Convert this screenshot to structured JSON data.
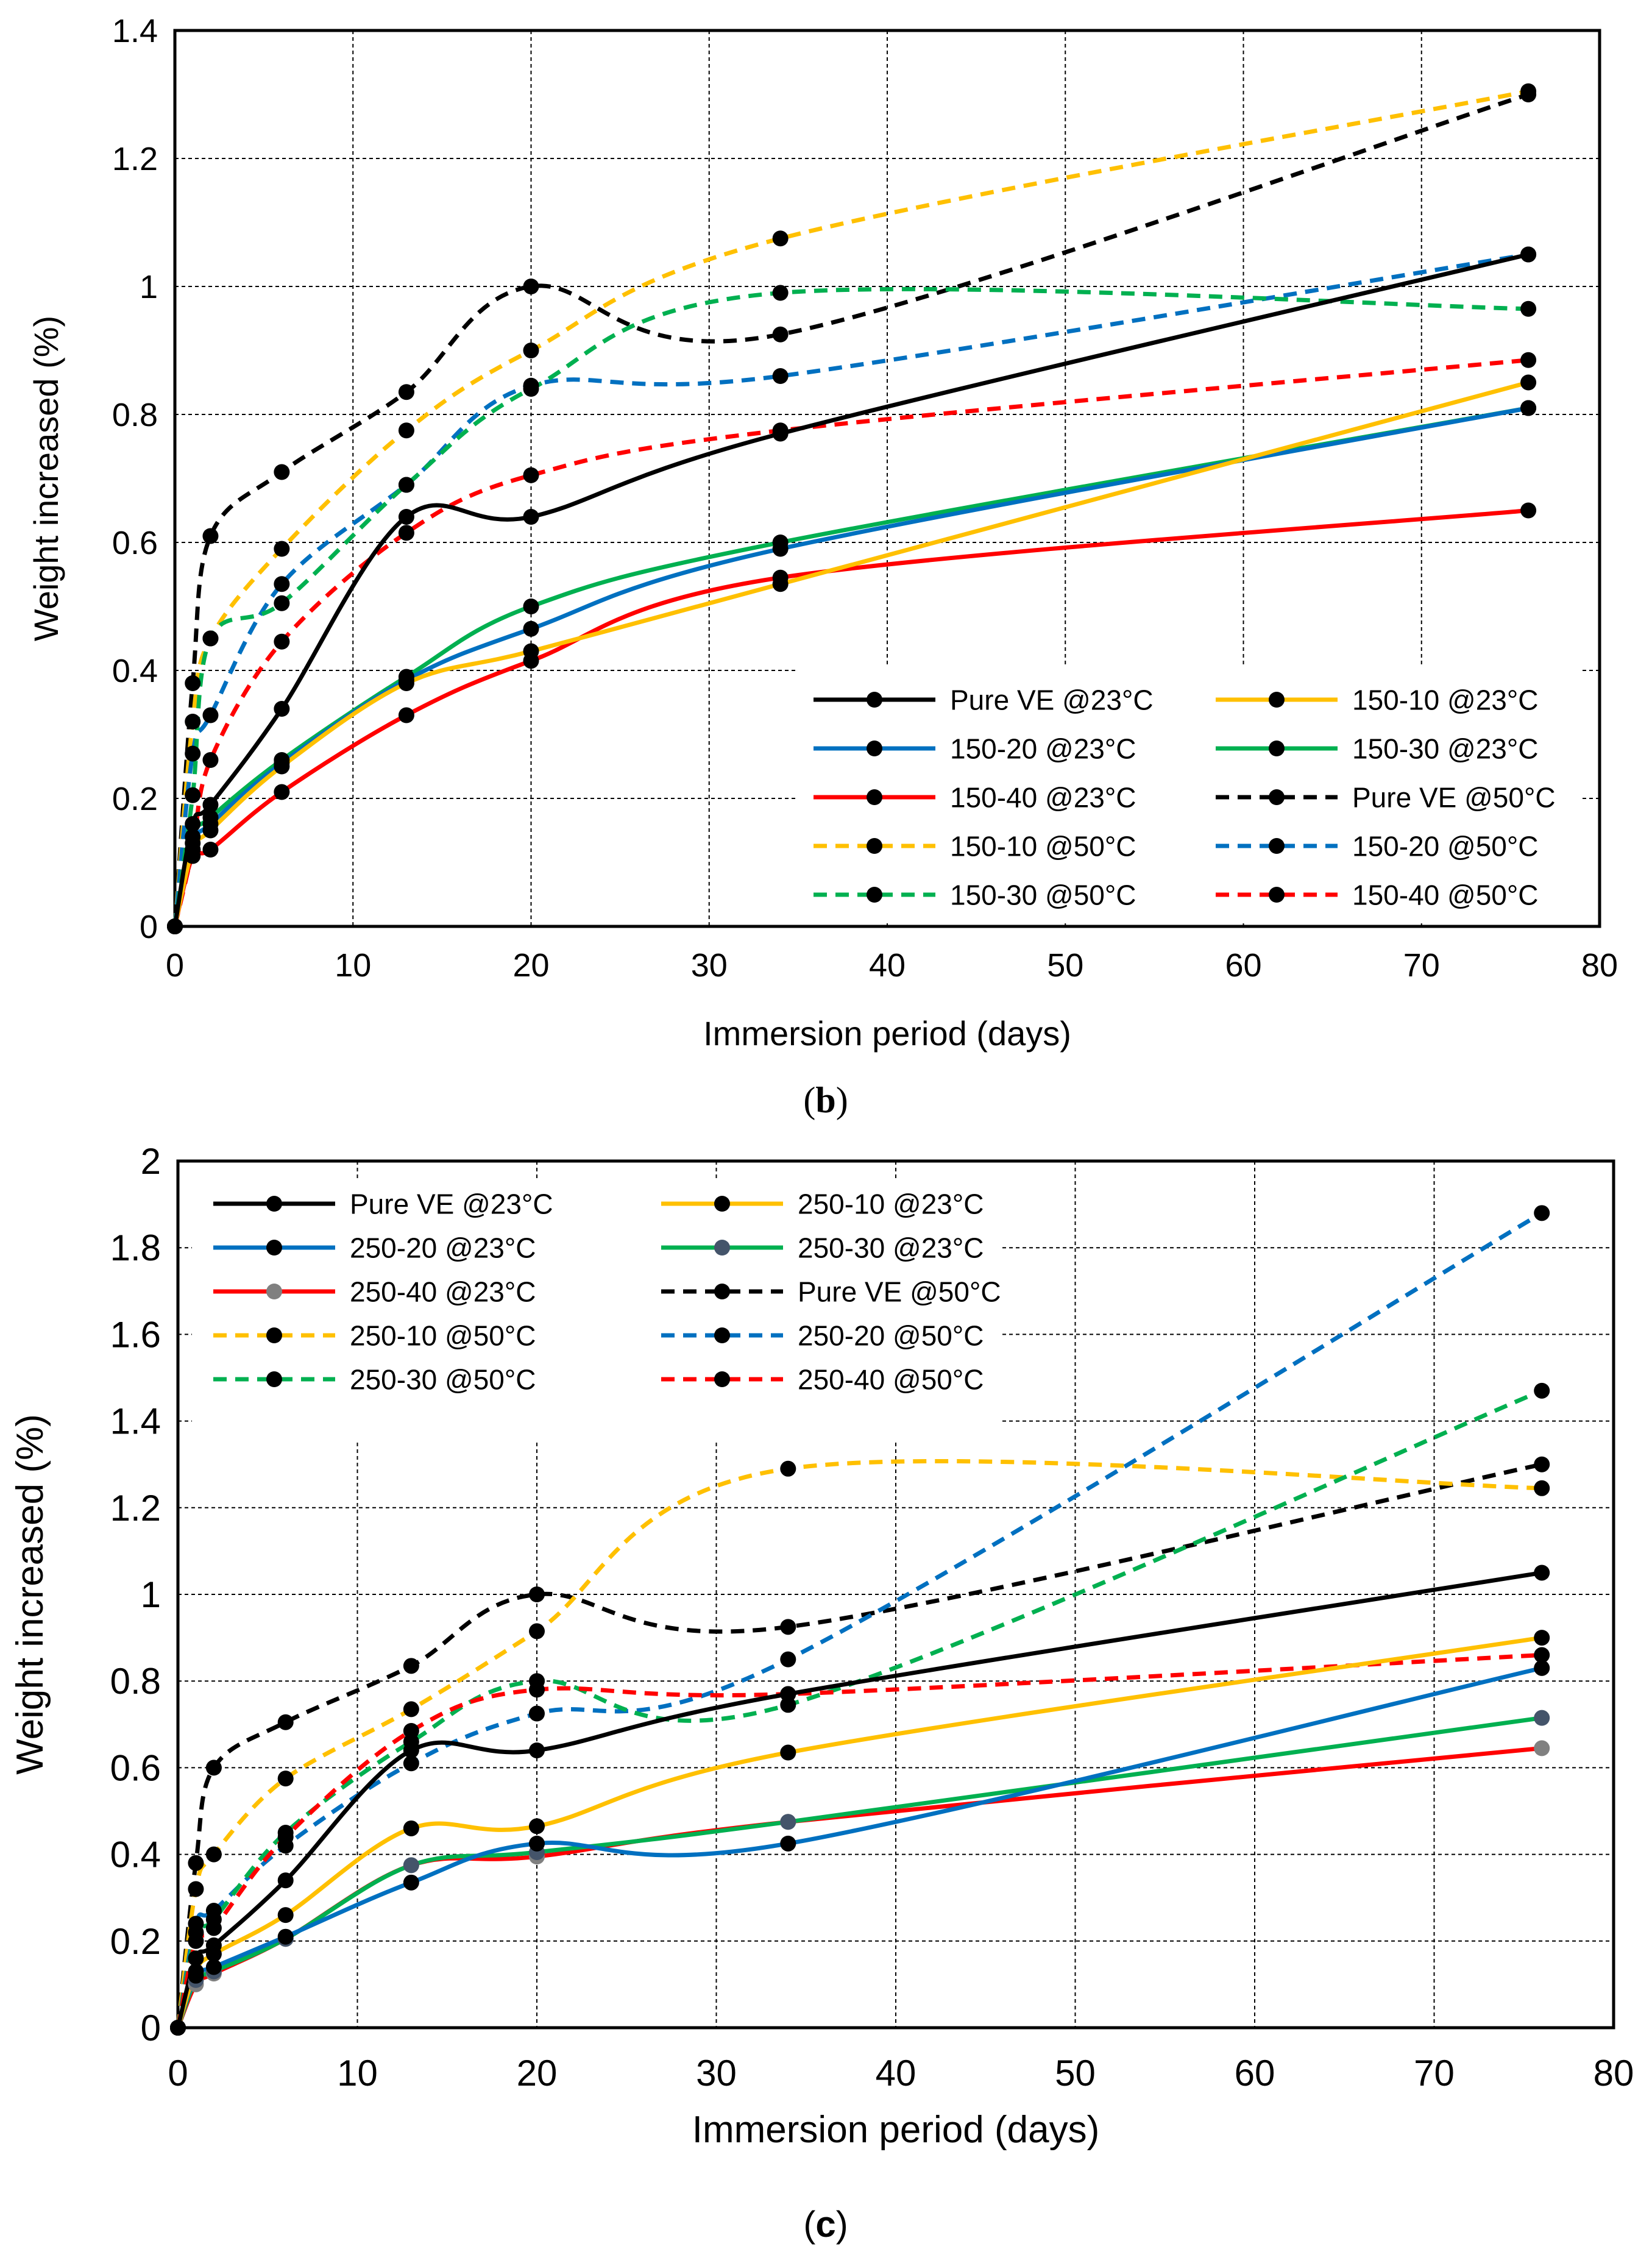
{
  "chart_data": [
    {
      "type": "line",
      "panel": "b",
      "caption_letter": "b",
      "title": "",
      "xlabel": "Immersion period (days)",
      "ylabel": "Weight increased (%)",
      "xlim": [
        0,
        80
      ],
      "ylim": [
        0,
        1.4
      ],
      "xticks": [
        0,
        10,
        20,
        30,
        40,
        50,
        60,
        70,
        80
      ],
      "xtick_labels": [
        "0",
        "10",
        "20",
        "30",
        "40",
        "50",
        "60",
        "70",
        "80"
      ],
      "yticks": [
        0,
        0.2,
        0.4,
        0.6,
        0.8,
        1.0,
        1.2,
        1.4
      ],
      "ytick_labels": [
        "0",
        "0.2",
        "0.4",
        "0.6",
        "0.8",
        "1",
        "1.2",
        "1.4"
      ],
      "grid": true,
      "legend_position": "bottom-right",
      "x": [
        0,
        1,
        2,
        6,
        13,
        20,
        34,
        76
      ],
      "series": [
        {
          "name": "Pure VE @23°C",
          "color": "#000000",
          "dashed": false,
          "marker": "#000000",
          "values": [
            0,
            0.16,
            0.19,
            0.34,
            0.64,
            0.64,
            0.77,
            1.05
          ]
        },
        {
          "name": "150-10 @23°C",
          "color": "#FFC000",
          "dashed": false,
          "marker": "#000000",
          "values": [
            0,
            0.12,
            0.15,
            0.25,
            0.38,
            0.43,
            0.535,
            0.85
          ]
        },
        {
          "name": "150-20 @23°C",
          "color": "#0070C0",
          "dashed": false,
          "marker": "#000000",
          "values": [
            0,
            0.13,
            0.16,
            0.255,
            0.385,
            0.465,
            0.59,
            0.81
          ]
        },
        {
          "name": "150-30 @23°C",
          "color": "#00B050",
          "dashed": false,
          "marker": "#000000",
          "values": [
            0,
            0.14,
            0.17,
            0.26,
            0.39,
            0.5,
            0.6,
            0.81
          ]
        },
        {
          "name": "150-40 @23°C",
          "color": "#FF0000",
          "dashed": false,
          "marker": "#000000",
          "values": [
            0,
            0.11,
            0.12,
            0.21,
            0.33,
            0.415,
            0.545,
            0.65
          ]
        },
        {
          "name": "Pure VE @50°C",
          "color": "#000000",
          "dashed": true,
          "marker": "#000000",
          "values": [
            0,
            0.38,
            0.61,
            0.71,
            0.835,
            1.0,
            0.925,
            1.3
          ]
        },
        {
          "name": "150-10 @50°C",
          "color": "#FFC000",
          "dashed": true,
          "marker": "#000000",
          "values": [
            0,
            0.32,
            0.45,
            0.59,
            0.775,
            0.9,
            1.075,
            1.305
          ]
        },
        {
          "name": "150-20 @50°C",
          "color": "#0070C0",
          "dashed": true,
          "marker": "#000000",
          "values": [
            0,
            0.27,
            0.33,
            0.535,
            0.69,
            0.845,
            0.86,
            1.05
          ]
        },
        {
          "name": "150-30 @50°C",
          "color": "#00B050",
          "dashed": true,
          "marker": "#000000",
          "values": [
            0,
            0.205,
            0.45,
            0.505,
            0.69,
            0.84,
            0.99,
            0.965
          ]
        },
        {
          "name": "150-40 @50°C",
          "color": "#FF0000",
          "dashed": true,
          "marker": "#000000",
          "values": [
            0,
            0.12,
            0.26,
            0.445,
            0.615,
            0.705,
            0.775,
            0.885
          ]
        }
      ]
    },
    {
      "type": "line",
      "panel": "c",
      "caption_letter": "c",
      "title": "",
      "xlabel": "Immersion period (days)",
      "ylabel": "Weight increased (%)",
      "xlim": [
        0,
        80
      ],
      "ylim": [
        0,
        2
      ],
      "xticks": [
        0,
        10,
        20,
        30,
        40,
        50,
        60,
        70,
        80
      ],
      "xtick_labels": [
        "0",
        "10",
        "20",
        "30",
        "40",
        "50",
        "60",
        "70",
        "80"
      ],
      "yticks": [
        0,
        0.2,
        0.4,
        0.6,
        0.8,
        1.0,
        1.2,
        1.4,
        1.6,
        1.8,
        2.0
      ],
      "ytick_labels": [
        "0",
        "0.2",
        "0.4",
        "0.6",
        "0.8",
        "1",
        "1.2",
        "1.4",
        "1.6",
        "1.8",
        "2"
      ],
      "grid": true,
      "legend_position": "top-left",
      "x": [
        0,
        1,
        2,
        6,
        13,
        20,
        34,
        76
      ],
      "series": [
        {
          "name": "Pure VE @23°C",
          "color": "#000000",
          "dashed": false,
          "marker": "#000000",
          "values": [
            0,
            0.16,
            0.19,
            0.34,
            0.64,
            0.64,
            0.77,
            1.05
          ]
        },
        {
          "name": "250-10 @23°C",
          "color": "#FFC000",
          "dashed": false,
          "marker": "#000000",
          "values": [
            0,
            0.13,
            0.17,
            0.26,
            0.46,
            0.465,
            0.635,
            0.9
          ]
        },
        {
          "name": "250-20 @23°C",
          "color": "#0070C0",
          "dashed": false,
          "marker": "#000000",
          "values": [
            0,
            0.12,
            0.14,
            0.21,
            0.335,
            0.425,
            0.425,
            0.83
          ]
        },
        {
          "name": "250-30 @23°C",
          "color": "#00B050",
          "dashed": false,
          "marker": "#44546A",
          "values": [
            0,
            0.11,
            0.13,
            0.205,
            0.375,
            0.405,
            0.475,
            0.715
          ]
        },
        {
          "name": "250-40 @23°C",
          "color": "#FF0000",
          "dashed": false,
          "marker": "#808080",
          "values": [
            0,
            0.1,
            0.125,
            0.205,
            0.375,
            0.395,
            0.475,
            0.645
          ]
        },
        {
          "name": "Pure VE @50°C",
          "color": "#000000",
          "dashed": true,
          "marker": "#000000",
          "values": [
            0,
            0.38,
            0.6,
            0.705,
            0.835,
            1.0,
            0.925,
            1.3
          ]
        },
        {
          "name": "250-10 @50°C",
          "color": "#FFC000",
          "dashed": true,
          "marker": "#000000",
          "values": [
            0,
            0.32,
            0.4,
            0.575,
            0.735,
            0.915,
            1.29,
            1.245
          ]
        },
        {
          "name": "250-20 @50°C",
          "color": "#0070C0",
          "dashed": true,
          "marker": "#000000",
          "values": [
            0,
            0.24,
            0.27,
            0.42,
            0.61,
            0.725,
            0.85,
            1.88
          ]
        },
        {
          "name": "250-30 @50°C",
          "color": "#00B050",
          "dashed": true,
          "marker": "#000000",
          "values": [
            0,
            0.22,
            0.25,
            0.45,
            0.66,
            0.8,
            0.745,
            1.47
          ]
        },
        {
          "name": "250-40 @50°C",
          "color": "#FF0000",
          "dashed": true,
          "marker": "#000000",
          "values": [
            0,
            0.2,
            0.23,
            0.44,
            0.685,
            0.78,
            0.77,
            0.86
          ]
        }
      ]
    }
  ]
}
